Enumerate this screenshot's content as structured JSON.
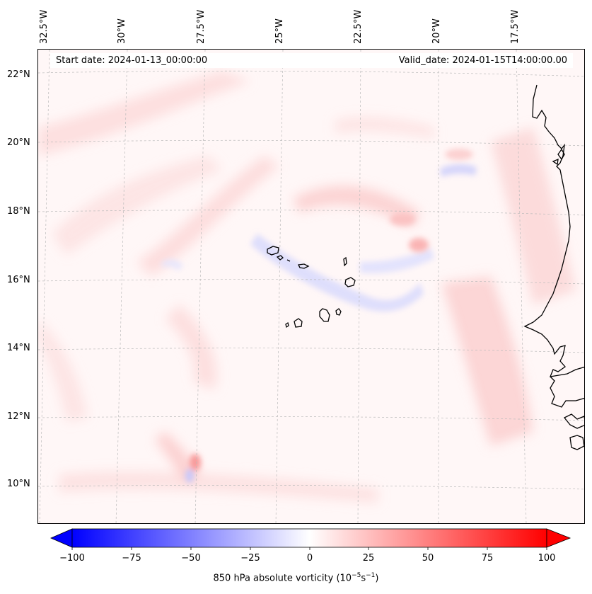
{
  "map": {
    "start_date": "Start date: 2024-01-13_00:00:00",
    "valid_date": "Valid_date: 2024-01-15T14:00:00.00",
    "lon_ticks": [
      "32.5°W",
      "30°W",
      "27.5°W",
      "25°W",
      "22.5°W",
      "20°W",
      "17.5°W"
    ],
    "lat_ticks": [
      "22°N",
      "20°N",
      "18°N",
      "16°N",
      "14°N",
      "12°N",
      "10°N"
    ],
    "background_color": "#fff7f7",
    "coastline_color": "#000000",
    "gridlines": true
  },
  "colorbar": {
    "label_main": "850 hPa absolute vorticity (10",
    "label_exp1": "−5",
    "label_mid": "s",
    "label_exp2": "−1",
    "label_end": ")",
    "ticks": [
      "−100",
      "−75",
      "−50",
      "−25",
      "0",
      "25",
      "50",
      "75",
      "100"
    ],
    "min": -100,
    "max": 100,
    "colormap": "bwr",
    "color_min": "#0000ff",
    "color_mid": "#ffffff",
    "color_max": "#ff0000",
    "extend": "both"
  }
}
